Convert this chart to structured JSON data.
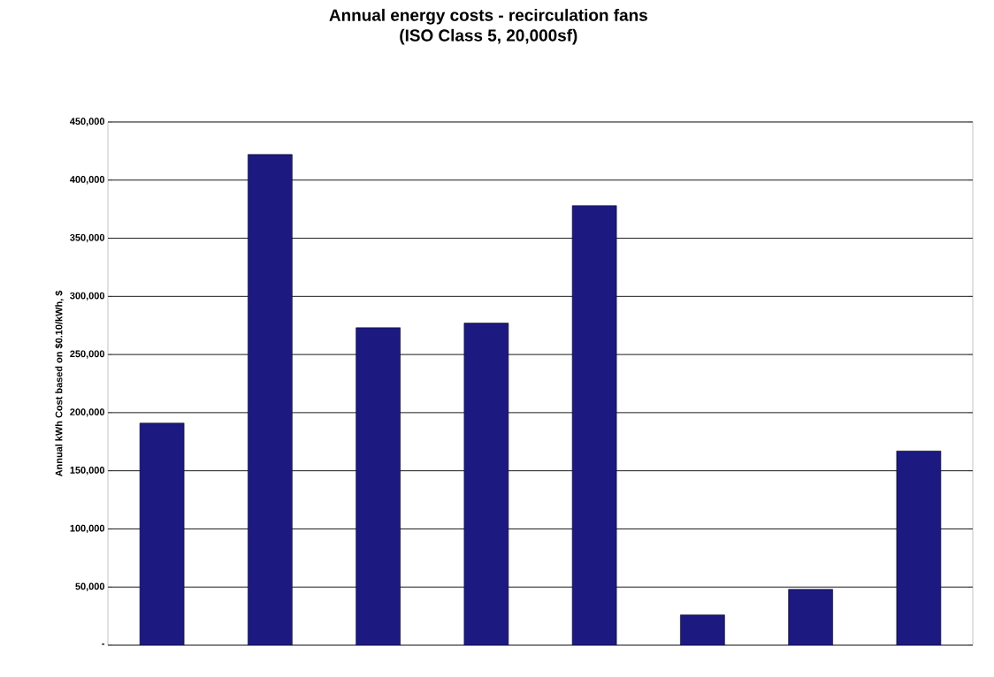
{
  "chart_data": {
    "type": "bar",
    "title": "Annual energy costs - recirculation fans",
    "subtitle": "(ISO Class 5, 20,000sf)",
    "ylabel": "Annual kWh Cost based on $0.10/kWh, $",
    "categories": [
      null,
      null,
      null,
      null,
      null,
      null,
      null,
      null
    ],
    "values": [
      191000,
      422000,
      273000,
      277000,
      378000,
      26000,
      48000,
      167000
    ],
    "color": "#1c1a80",
    "ylim": [
      0,
      450000
    ],
    "yticks": [
      {
        "value": 0,
        "label": "-"
      },
      {
        "value": 50000,
        "label": "50,000"
      },
      {
        "value": 100000,
        "label": "100,000"
      },
      {
        "value": 150000,
        "label": "150,000"
      },
      {
        "value": 200000,
        "label": "200,000"
      },
      {
        "value": 250000,
        "label": "250,000"
      },
      {
        "value": 300000,
        "label": "300,000"
      },
      {
        "value": 350000,
        "label": "350,000"
      },
      {
        "value": 400000,
        "label": "400,000"
      },
      {
        "value": 450000,
        "label": "450,000"
      }
    ],
    "grid": "y",
    "tick_labels": "y"
  }
}
